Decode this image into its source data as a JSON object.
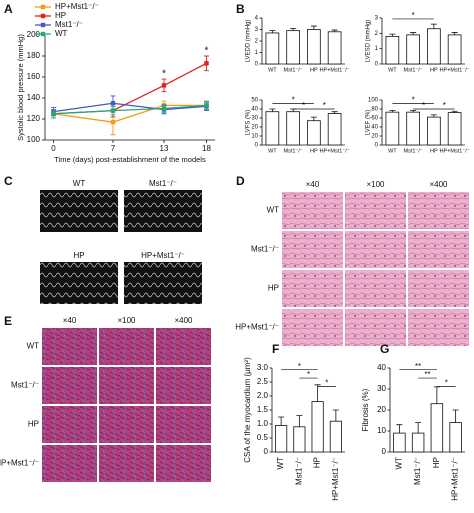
{
  "panels": [
    "A",
    "B",
    "C",
    "D",
    "E",
    "F",
    "G"
  ],
  "images": {
    "echo_labels": [
      "WT",
      "Mst1⁻/⁻",
      "HP",
      "HP+Mst1⁻/⁻"
    ],
    "d_columns": [
      "×40",
      "×100",
      "×400"
    ],
    "d_rows": [
      "WT",
      "Mst1⁻/⁻",
      "HP",
      "HP+Mst1⁻/⁻"
    ],
    "e_columns": [
      "×40",
      "×100",
      "×400"
    ],
    "e_rows": [
      "WT",
      "Mst1⁻/⁻",
      "HP",
      "HP+Mst1⁻/⁻"
    ]
  },
  "chart_data": [
    {
      "type": "line",
      "ylabel": "Systolic blood pressure (mmHg)",
      "xlabel": "Time (days) post-establishment of the models",
      "x": [
        0,
        7,
        13,
        18
      ],
      "xlim": [
        -1,
        19
      ],
      "xticks": [
        0,
        7,
        13,
        18
      ],
      "ylim": [
        100,
        200
      ],
      "yticks": [
        100,
        120,
        140,
        160,
        180,
        200
      ],
      "legend": "upper left",
      "series": [
        {
          "name": "HP+Mst1⁻/⁻",
          "color": "#f39c12",
          "values": [
            125,
            117,
            133,
            133
          ],
          "errors": [
            4,
            12,
            4,
            4
          ]
        },
        {
          "name": "HP",
          "color": "#e02020",
          "values": [
            125,
            128,
            152,
            173
          ],
          "errors": [
            4,
            6,
            6,
            7
          ]
        },
        {
          "name": "Mst1⁻/⁻",
          "color": "#4a55c8",
          "values": [
            127,
            135,
            129,
            132
          ],
          "errors": [
            4,
            7,
            4,
            4
          ]
        },
        {
          "name": "WT",
          "color": "#27a87a",
          "values": [
            125,
            128,
            130,
            133
          ],
          "errors": [
            4,
            4,
            4,
            4
          ]
        }
      ],
      "annotations": [
        "*",
        "*"
      ]
    },
    {
      "type": "bar",
      "ylabel": "LVEDD (mmHg)",
      "categories": [
        "WT",
        "Mst1⁻/⁻",
        "HP",
        "HP+Mst1⁻/⁻"
      ],
      "values": [
        2.7,
        2.9,
        3.0,
        2.8
      ],
      "errors": [
        0.2,
        0.2,
        0.3,
        0.15
      ],
      "color": "#ffffff",
      "ylim": [
        0,
        4
      ],
      "yticks": [
        0,
        1,
        2,
        3,
        4
      ],
      "annotations": []
    },
    {
      "type": "bar",
      "ylabel": "LVESD (mmHg)",
      "categories": [
        "WT",
        "Mst1⁻/⁻",
        "HP",
        "HP+Mst1⁻/⁻"
      ],
      "values": [
        1.8,
        1.9,
        2.3,
        1.9
      ],
      "errors": [
        0.15,
        0.15,
        0.3,
        0.15
      ],
      "color": "#ffffff",
      "ylim": [
        0,
        3
      ],
      "yticks": [
        0,
        1,
        2,
        3
      ],
      "annotations": [
        "*"
      ]
    },
    {
      "type": "bar",
      "ylabel": "LVFS (%)",
      "categories": [
        "WT",
        "Mst1⁻/⁻",
        "HP",
        "HP+Mst1⁻/⁻"
      ],
      "values": [
        37,
        37,
        27,
        35
      ],
      "errors": [
        3,
        3,
        4,
        2
      ],
      "color": "#ffffff",
      "ylim": [
        0,
        50
      ],
      "yticks": [
        0,
        10,
        20,
        30,
        40,
        50
      ],
      "annotations": [
        "*",
        "*",
        "*"
      ]
    },
    {
      "type": "bar",
      "ylabel": "LVEF (%)",
      "categories": [
        "WT",
        "Mst1⁻/⁻",
        "HP",
        "HP+Mst1⁻/⁻"
      ],
      "values": [
        73,
        73,
        62,
        72
      ],
      "errors": [
        4,
        4,
        5,
        3
      ],
      "color": "#ffffff",
      "ylim": [
        0,
        100
      ],
      "yticks": [
        0,
        20,
        40,
        60,
        80,
        100
      ],
      "annotations": [
        "*",
        "*",
        "*"
      ]
    },
    {
      "type": "bar",
      "ylabel": "CSA of the myocardium (μm²)",
      "categories": [
        "WT",
        "Mst1⁻/⁻",
        "HP",
        "HP+Mst1⁻/⁻"
      ],
      "values": [
        0.95,
        0.9,
        1.8,
        1.1
      ],
      "errors": [
        0.3,
        0.4,
        0.6,
        0.4
      ],
      "color": "#ffffff",
      "ylim": [
        0,
        3
      ],
      "yticks": [
        0,
        0.5,
        {
          "value": 1,
          "label": "1.0"
        },
        1.5,
        {
          "value": 2,
          "label": "2.0"
        },
        2.5,
        {
          "value": 3,
          "label": "3.0"
        }
      ],
      "rotate_labels": true,
      "annotations": [
        "*",
        "*",
        "*"
      ]
    },
    {
      "type": "bar",
      "ylabel": "Fibrosis (%)",
      "categories": [
        "WT",
        "Mst1⁻/⁻",
        "HP",
        "HP+Mst1⁻/⁻"
      ],
      "values": [
        9,
        9,
        23,
        14
      ],
      "errors": [
        4,
        5,
        8,
        6
      ],
      "color": "#ffffff",
      "ylim": [
        0,
        40
      ],
      "yticks": [
        0,
        10,
        20,
        30,
        40
      ],
      "rotate_labels": true,
      "annotations": [
        "**",
        "**",
        "*"
      ]
    }
  ]
}
